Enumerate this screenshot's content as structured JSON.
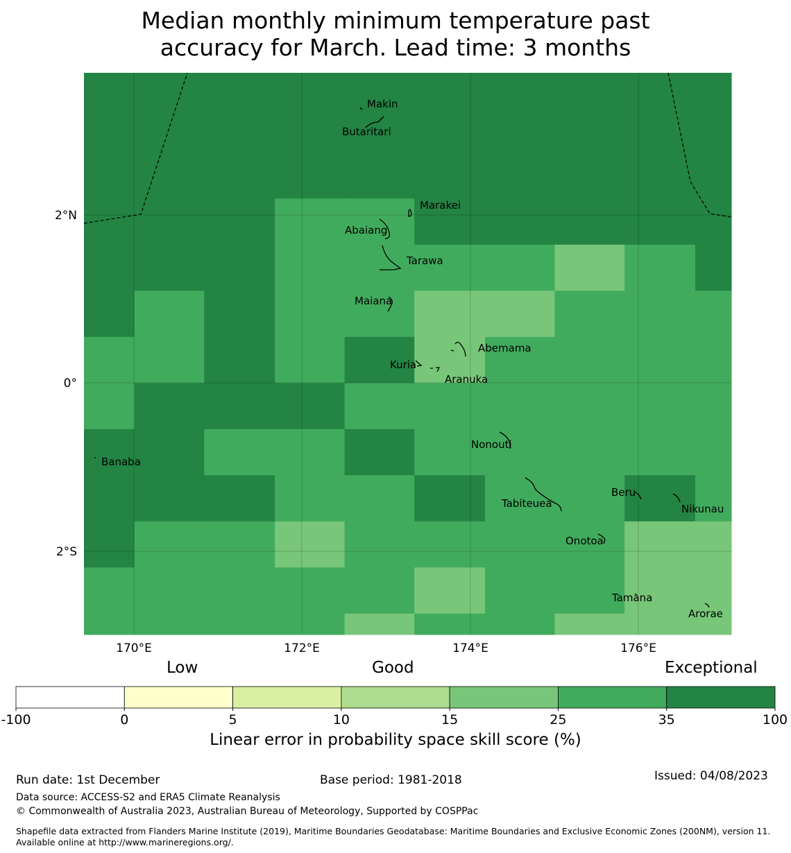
{
  "title": {
    "line1": "Median monthly minimum temperature past",
    "line2": "accuracy for March. Lead time: 3 months"
  },
  "map": {
    "x_axis": {
      "label_170": "170°E",
      "label_172": "172°E",
      "label_174": "174°E",
      "label_176": "176°E"
    },
    "y_axis": {
      "label_2n": "2°N",
      "label_0": "0°",
      "label_2s": "2°S"
    },
    "islands": [
      {
        "name": "Makin",
        "lon": 173.0,
        "lat": 3.4
      },
      {
        "name": "Butaritari",
        "lon": 172.8,
        "lat": 3.1
      },
      {
        "name": "Marakei",
        "lon": 173.3,
        "lat": 2.0
      },
      {
        "name": "Abaiang",
        "lon": 172.9,
        "lat": 1.8
      },
      {
        "name": "Tarawa",
        "lon": 172.9,
        "lat": 1.4
      },
      {
        "name": "Maiana",
        "lon": 173.0,
        "lat": 0.9
      },
      {
        "name": "Abemama",
        "lon": 173.9,
        "lat": 0.4
      },
      {
        "name": "Kuria",
        "lon": 173.4,
        "lat": 0.2
      },
      {
        "name": "Aranuka",
        "lon": 173.6,
        "lat": 0.2
      },
      {
        "name": "Nonouti",
        "lon": 174.4,
        "lat": -0.6
      },
      {
        "name": "Banaba",
        "lon": 169.5,
        "lat": -0.9
      },
      {
        "name": "Tabiteuea",
        "lon": 174.8,
        "lat": -1.3
      },
      {
        "name": "Beru",
        "lon": 176.0,
        "lat": -1.3
      },
      {
        "name": "Nikunau",
        "lon": 176.5,
        "lat": -1.4
      },
      {
        "name": "Onotoa",
        "lon": 175.6,
        "lat": -1.8
      },
      {
        "name": "Tamana",
        "lon": 176.0,
        "lat": -2.5
      },
      {
        "name": "Arorae",
        "lon": 176.8,
        "lat": -2.6
      }
    ]
  },
  "skill_grid": {
    "lon_edges": [
      169.4,
      170.0,
      170.83,
      171.67,
      172.5,
      173.33,
      174.17,
      175.0,
      175.83,
      176.67,
      177.1
    ],
    "lat_edges": [
      3.7,
      2.2,
      1.65,
      1.1,
      0.55,
      0.0,
      -0.55,
      -1.1,
      -1.65,
      -2.2,
      -2.75,
      -3.0
    ],
    "category_by_row": [
      [
        6,
        6,
        6,
        6,
        6,
        6,
        6,
        6,
        6,
        6
      ],
      [
        6,
        6,
        6,
        5,
        5,
        6,
        6,
        6,
        6,
        6
      ],
      [
        6,
        6,
        6,
        5,
        5,
        5,
        5,
        4,
        5,
        6
      ],
      [
        6,
        5,
        6,
        5,
        5,
        4,
        4,
        5,
        5,
        5
      ],
      [
        5,
        5,
        6,
        5,
        6,
        4,
        5,
        5,
        5,
        5
      ],
      [
        5,
        6,
        6,
        6,
        5,
        5,
        5,
        5,
        5,
        5
      ],
      [
        6,
        6,
        5,
        5,
        6,
        5,
        5,
        5,
        5,
        5
      ],
      [
        6,
        6,
        6,
        5,
        5,
        6,
        5,
        5,
        6,
        5
      ],
      [
        6,
        5,
        5,
        4,
        5,
        5,
        5,
        5,
        4,
        4
      ],
      [
        5,
        5,
        5,
        5,
        5,
        4,
        5,
        5,
        4,
        4
      ],
      [
        5,
        5,
        5,
        5,
        4,
        5,
        5,
        4,
        4,
        4
      ]
    ]
  },
  "legend": {
    "low": "Low",
    "good": "Good",
    "exceptional": "Exceptional",
    "bins": [
      {
        "from": -100,
        "to": 0,
        "color": "#ffffff"
      },
      {
        "from": 0,
        "to": 5,
        "color": "#ffffcc"
      },
      {
        "from": 5,
        "to": 10,
        "color": "#d9f0a3"
      },
      {
        "from": 10,
        "to": 15,
        "color": "#addd8e"
      },
      {
        "from": 15,
        "to": 25,
        "color": "#78c679"
      },
      {
        "from": 25,
        "to": 35,
        "color": "#41ab5d"
      },
      {
        "from": 35,
        "to": 100,
        "color": "#238443"
      }
    ],
    "ticks": [
      "-100",
      "0",
      "5",
      "10",
      "15",
      "25",
      "35",
      "100"
    ],
    "axis_title": "Linear error in probability space skill score (%)"
  },
  "footer": {
    "run_date": "Run date: 1st December",
    "base_period": "Base period: 1981-2018",
    "issued": "Issued: 04/08/2023",
    "data_source": "Data source: ACCESS-S2 and ERA5 Climate Reanalysis",
    "copyright": "© Commonwealth of Australia 2023, Australian Bureau of Meteorology, Supported by COSPPac",
    "shapefile": "Shapefile data extracted from Flanders Marine Institute (2019), Maritime Boundaries Geodatabase: Maritime Boundaries and Exclusive Economic Zones (200NM), version 11. Available online at http://www.marineregions.org/."
  }
}
